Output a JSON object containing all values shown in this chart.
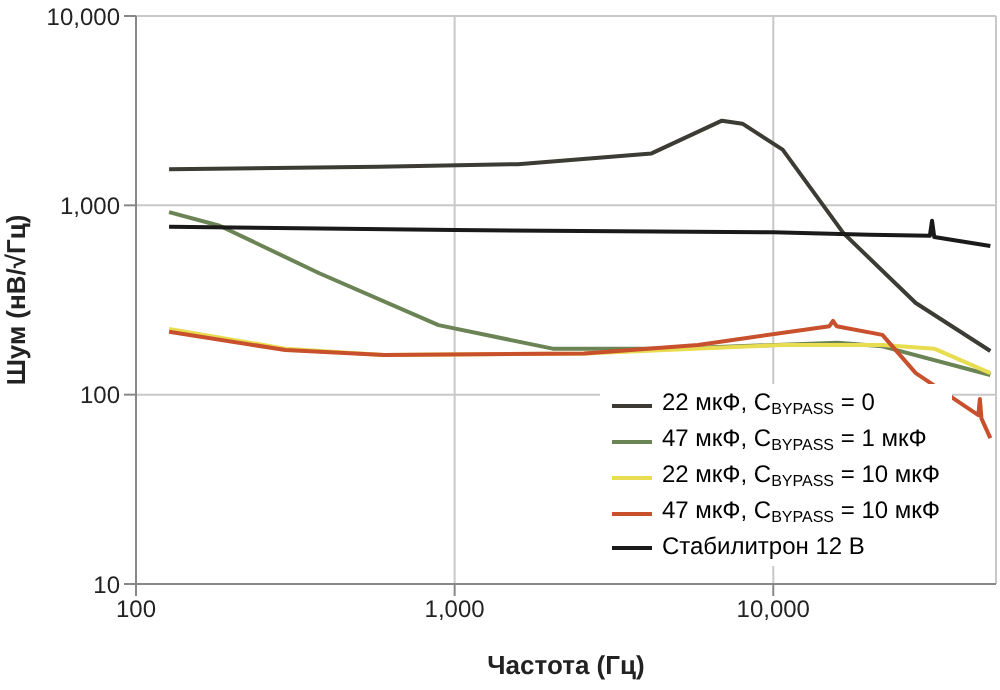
{
  "chart_data": {
    "type": "line",
    "xlabel": "Частота (Гц)",
    "ylabel": "Шум (нВ/√Гц)",
    "log": "xy",
    "grid": true,
    "legend": "bottom right",
    "line_style": "solid",
    "marker": "none",
    "xlim": [
      100,
      50000
    ],
    "xticks": [
      100,
      {
        "value": 1000,
        "label": "1,000"
      },
      {
        "value": 10000,
        "label": "10,000"
      }
    ],
    "ylim": [
      10,
      10000
    ],
    "yticks": [
      10,
      100,
      {
        "value": 1000,
        "label": "1,000"
      },
      {
        "value": 10000,
        "label": "10,000"
      }
    ],
    "series": [
      {
        "name": "22 мкФ, C$_{BYPASS}$ = 0",
        "color": "#3c3c34",
        "x": [
          127,
          578,
          1580,
          4150,
          6900,
          8000,
          10700,
          16600,
          28000,
          48000
        ],
        "values": [
          1550,
          1600,
          1650,
          1880,
          2800,
          2700,
          1970,
          713,
          305,
          170
        ]
      },
      {
        "name": "47 мкФ, C$_{BYPASS}$ = 1 мкФ",
        "color": "#6b8455",
        "x": [
          127,
          183,
          376,
          890,
          2030,
          2550,
          4800,
          15900,
          22000,
          48000
        ],
        "values": [
          920,
          780,
          438,
          233,
          175,
          175,
          175,
          188,
          180,
          127
        ]
      },
      {
        "name": "22 мкФ, C$_{BYPASS}$ = 10 мкФ",
        "color": "#e8dc50",
        "x": [
          127,
          294,
          600,
          2550,
          10700,
          22000,
          32000,
          48000
        ],
        "values": [
          222,
          175,
          162,
          165,
          183,
          183,
          175,
          130
        ]
      },
      {
        "name": "47 мкФ, C$_{BYPASS}$ = 10 мкФ",
        "color": "#c8502c",
        "x": [
          127,
          294,
          600,
          2550,
          5800,
          15000,
          15400,
          15800,
          22000,
          28000,
          44000,
          44500,
          45000,
          48000
        ],
        "values": [
          215,
          172,
          162,
          165,
          183,
          230,
          245,
          230,
          207,
          130,
          78,
          95,
          75,
          59
        ]
      },
      {
        "name": "Стабилитрон 12 В",
        "color": "#1a1a1a",
        "x": [
          127,
          1000,
          10000,
          20000,
          31000,
          31500,
          32000,
          48000
        ],
        "values": [
          770,
          740,
          720,
          700,
          690,
          830,
          680,
          610
        ]
      }
    ]
  }
}
